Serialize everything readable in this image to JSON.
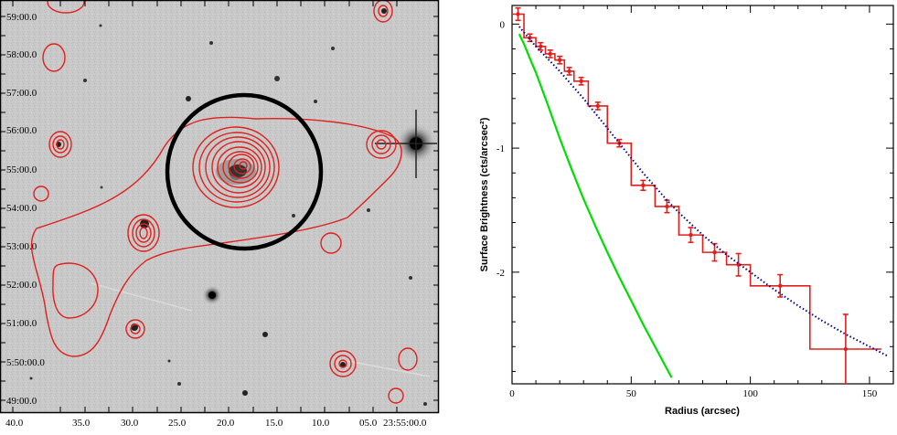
{
  "image_panel": {
    "dec_labels": [
      "59:00.0",
      "58:00.0",
      "57:00.0",
      "56:00.0",
      "55:00.0",
      "54:00.0",
      "53:00.0",
      "52:00.0",
      "51:00.0",
      "5:50:00.0",
      "49:00.0"
    ],
    "ra_labels": [
      "40.0",
      "35.0",
      "30.0",
      "25.0",
      "20.0",
      "15.0",
      "10.0",
      "05.0",
      "23:55:00.0"
    ],
    "colors": {
      "contour": "#e0201c",
      "circle": "#000000",
      "background": "#c8c8c8"
    }
  },
  "chart_data": {
    "type": "line",
    "xlabel": "Radius (arcsec)",
    "ylabel": "Surface Brightness (cts/arcsec²)",
    "xlim": [
      0,
      160
    ],
    "ylim": [
      -2.9,
      0.15
    ],
    "xticks": [
      0,
      50,
      100,
      150
    ],
    "yticks": [
      0,
      -1,
      -2
    ],
    "grid": false,
    "series": [
      {
        "style": "step-with-errorbars",
        "color": "#e0201c",
        "bins": [
          {
            "x0": 0,
            "x1": 5,
            "y": 0.08,
            "err": 0.05
          },
          {
            "x0": 5,
            "x1": 10,
            "y": -0.11,
            "err": 0.03
          },
          {
            "x0": 10,
            "x1": 14,
            "y": -0.18,
            "err": 0.03
          },
          {
            "x0": 14,
            "x1": 18,
            "y": -0.24,
            "err": 0.03
          },
          {
            "x0": 18,
            "x1": 22,
            "y": -0.29,
            "err": 0.03
          },
          {
            "x0": 22,
            "x1": 26,
            "y": -0.38,
            "err": 0.03
          },
          {
            "x0": 26,
            "x1": 32,
            "y": -0.46,
            "err": 0.03
          },
          {
            "x0": 32,
            "x1": 40,
            "y": -0.66,
            "err": 0.03
          },
          {
            "x0": 40,
            "x1": 50,
            "y": -0.96,
            "err": 0.03
          },
          {
            "x0": 50,
            "x1": 60,
            "y": -1.3,
            "err": 0.04
          },
          {
            "x0": 60,
            "x1": 70,
            "y": -1.47,
            "err": 0.05
          },
          {
            "x0": 70,
            "x1": 80,
            "y": -1.7,
            "err": 0.06
          },
          {
            "x0": 80,
            "x1": 90,
            "y": -1.84,
            "err": 0.07
          },
          {
            "x0": 90,
            "x1": 100,
            "y": -1.94,
            "err": 0.09
          },
          {
            "x0": 100,
            "x1": 125,
            "y": -2.11,
            "err": 0.09
          },
          {
            "x0": 125,
            "x1": 155,
            "y": -2.62,
            "err": 0.28
          }
        ]
      },
      {
        "style": "dotted",
        "color": "#00008b",
        "x": [
          3,
          6,
          10,
          15,
          20,
          25,
          30,
          35,
          40,
          45,
          50,
          55,
          60,
          65,
          70,
          75,
          80,
          85,
          90,
          95,
          100,
          110,
          120,
          130,
          140,
          150,
          158
        ],
        "y": [
          -0.02,
          -0.09,
          -0.18,
          -0.28,
          -0.38,
          -0.49,
          -0.6,
          -0.72,
          -0.84,
          -0.96,
          -1.08,
          -1.2,
          -1.31,
          -1.42,
          -1.52,
          -1.61,
          -1.7,
          -1.78,
          -1.86,
          -1.93,
          -2.0,
          -2.14,
          -2.27,
          -2.39,
          -2.5,
          -2.6,
          -2.68
        ]
      },
      {
        "style": "solid",
        "color": "#00dd00",
        "x": [
          3,
          5,
          8,
          10,
          15,
          20,
          25,
          30,
          35,
          40,
          45,
          50,
          55,
          60,
          65,
          67
        ],
        "y": [
          -0.08,
          -0.16,
          -0.3,
          -0.39,
          -0.65,
          -0.92,
          -1.17,
          -1.41,
          -1.63,
          -1.84,
          -2.04,
          -2.23,
          -2.42,
          -2.6,
          -2.78,
          -2.85
        ]
      }
    ]
  }
}
